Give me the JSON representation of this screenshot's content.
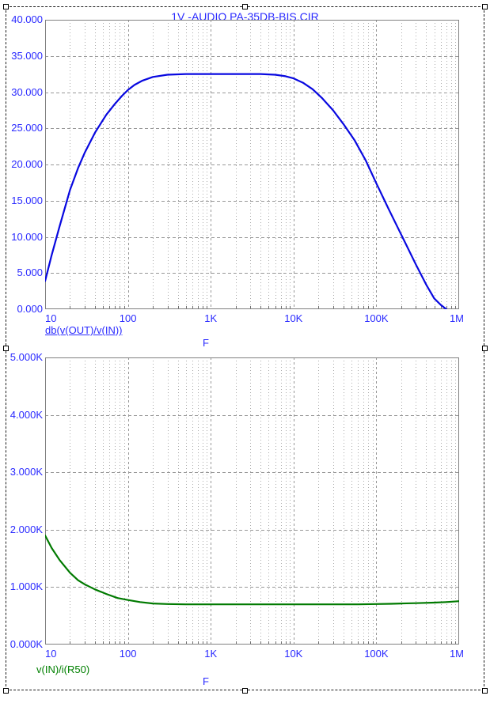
{
  "window": {
    "background": "#ffffff"
  },
  "selection": {
    "border_style": "dashed",
    "handles": [
      "top-left",
      "top-center",
      "top-right",
      "mid-left",
      "mid-right",
      "bottom-left",
      "bottom-center",
      "bottom-right"
    ]
  },
  "colors": {
    "axis_text": "#2a2aff",
    "grid_major": "#979797",
    "grid_minor": "#ababab",
    "plot_border": "#808080",
    "tick_mark": "#6e6e6e",
    "gain_curve": "#0808e0",
    "impedance_curve": "#007a00",
    "impedance_label": "#008000"
  },
  "chart_data": [
    {
      "type": "line",
      "title": "1V -AUDIO PA-35DB-BIS.CIR",
      "xlabel": "F",
      "ylabel": "",
      "x_scale": "log",
      "xlim": [
        10,
        1000000
      ],
      "ylim": [
        0,
        40
      ],
      "y_tick_step": 5,
      "grid": true,
      "legend_position": "below-left",
      "y_ticks": [
        "40.000",
        "35.000",
        "30.000",
        "25.000",
        "20.000",
        "15.000",
        "10.000",
        "5.000",
        "0.000"
      ],
      "x_ticks": [
        "10",
        "100",
        "1K",
        "10K",
        "100K",
        "1M"
      ],
      "series": [
        {
          "name": "db(v(OUT)/v(IN))",
          "color_key": "gain_curve",
          "unit": "dB",
          "points": [
            [
              10,
              3.9
            ],
            [
              12,
              7.5
            ],
            [
              15,
              11.5
            ],
            [
              20,
              16.5
            ],
            [
              25,
              19.5
            ],
            [
              30,
              21.6
            ],
            [
              40,
              24.4
            ],
            [
              55,
              26.9
            ],
            [
              70,
              28.4
            ],
            [
              85,
              29.5
            ],
            [
              100,
              30.3
            ],
            [
              120,
              31.0
            ],
            [
              150,
              31.6
            ],
            [
              200,
              32.1
            ],
            [
              300,
              32.4
            ],
            [
              500,
              32.5
            ],
            [
              1000,
              32.5
            ],
            [
              2000,
              32.5
            ],
            [
              4000,
              32.5
            ],
            [
              6000,
              32.4
            ],
            [
              8000,
              32.2
            ],
            [
              10000,
              31.9
            ],
            [
              13000,
              31.3
            ],
            [
              17000,
              30.4
            ],
            [
              22000,
              29.2
            ],
            [
              30000,
              27.5
            ],
            [
              40000,
              25.6
            ],
            [
              55000,
              23.3
            ],
            [
              75000,
              20.5
            ],
            [
              100000,
              17.4
            ],
            [
              140000,
              13.9
            ],
            [
              200000,
              10.3
            ],
            [
              300000,
              6.2
            ],
            [
              400000,
              3.4
            ],
            [
              500000,
              1.5
            ],
            [
              600000,
              0.6
            ],
            [
              700000,
              0.0
            ]
          ]
        }
      ]
    },
    {
      "type": "line",
      "title": "",
      "xlabel": "F",
      "ylabel": "",
      "x_scale": "log",
      "xlim": [
        10,
        1000000
      ],
      "ylim": [
        0,
        5
      ],
      "y_tick_step": 1,
      "y_unit": "K",
      "grid": true,
      "legend_position": "below-left",
      "y_ticks": [
        "5.000K",
        "4.000K",
        "3.000K",
        "2.000K",
        "1.000K",
        "0.000K"
      ],
      "x_ticks": [
        "10",
        "100",
        "1K",
        "10K",
        "100K",
        "1M"
      ],
      "series": [
        {
          "name": "v(IN)/i(R50)",
          "color_key": "impedance_curve",
          "unit": "kOhm",
          "points": [
            [
              10,
              1.9
            ],
            [
              12,
              1.68
            ],
            [
              15,
              1.47
            ],
            [
              20,
              1.25
            ],
            [
              25,
              1.12
            ],
            [
              30,
              1.05
            ],
            [
              40,
              0.96
            ],
            [
              55,
              0.88
            ],
            [
              75,
              0.81
            ],
            [
              100,
              0.775
            ],
            [
              140,
              0.74
            ],
            [
              200,
              0.715
            ],
            [
              300,
              0.705
            ],
            [
              500,
              0.7
            ],
            [
              1000,
              0.7
            ],
            [
              3000,
              0.7
            ],
            [
              10000,
              0.7
            ],
            [
              30000,
              0.7
            ],
            [
              60000,
              0.7
            ],
            [
              100000,
              0.705
            ],
            [
              150000,
              0.71
            ],
            [
              200000,
              0.715
            ],
            [
              300000,
              0.72
            ],
            [
              500000,
              0.73
            ],
            [
              700000,
              0.74
            ],
            [
              1000000,
              0.755
            ]
          ]
        }
      ]
    }
  ]
}
